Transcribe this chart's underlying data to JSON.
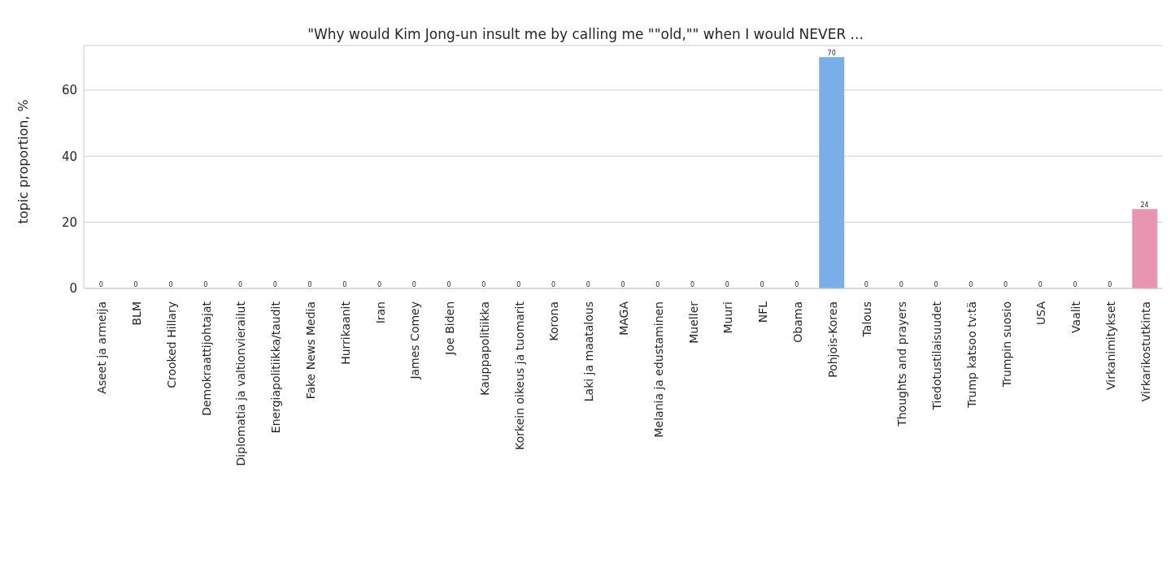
{
  "chart_data": {
    "type": "bar",
    "title": "\"Why would Kim Jong-un insult me by calling me \"\"old,\"\" when I would NEVER ...",
    "ylabel": "topic proportion, %",
    "categories": [
      "Aseet ja armeija",
      "BLM",
      "Crooked Hillary",
      "Demokraattijohtajat",
      "Diplomatia ja valtionvierailut",
      "Energiapolitiikka/taudit",
      "Fake News Media",
      "Hurrikaanit",
      "Iran",
      "James Comey",
      "Joe Biden",
      "Kauppapolitiikka",
      "Korkein oikeus ja tuomarit",
      "Korona",
      "Laki ja maatalous",
      "MAGA",
      "Melania ja edustaminen",
      "Mueller",
      "Muuri",
      "NFL",
      "Obama",
      "Pohjois-Korea",
      "Talous",
      "Thoughts and prayers",
      "Tiedotustilaisuudet",
      "Trump katsoo tv:tä",
      "Trumpin suosio",
      "USA",
      "Vaalit",
      "Virkanimitykset",
      "Virkarikostutkinta"
    ],
    "values": [
      0,
      0,
      0,
      0,
      0,
      0,
      0,
      0,
      0,
      0,
      0,
      0,
      0,
      0,
      0,
      0,
      0,
      0,
      0,
      0,
      0,
      70,
      0,
      0,
      0,
      0,
      0,
      0,
      0,
      0,
      24
    ],
    "colors": [
      "#f77189",
      "#f7754f",
      "#e1822f",
      "#ce8f31",
      "#bd9931",
      "#ae9d31",
      "#9da431",
      "#86ab31",
      "#50b131",
      "#32b166",
      "#34af83",
      "#35ad96",
      "#36aba5",
      "#37a9b3",
      "#38a7c2",
      "#3aa3d3",
      "#4b9ee8",
      "#7aaee6",
      "#8e8bf4",
      "#a57ff4",
      "#bb73f4",
      "#7aaee6",
      "#de66f4",
      "#f45ee2",
      "#f564d0",
      "#f66bbe",
      "#f66fad",
      "#f6749c",
      "#f6778d",
      "#f77189",
      "#e895b2"
    ],
    "ylim": [
      0,
      73.5
    ],
    "yticks": [
      0,
      20,
      40,
      60
    ],
    "grid": "y",
    "data_labels": true
  }
}
